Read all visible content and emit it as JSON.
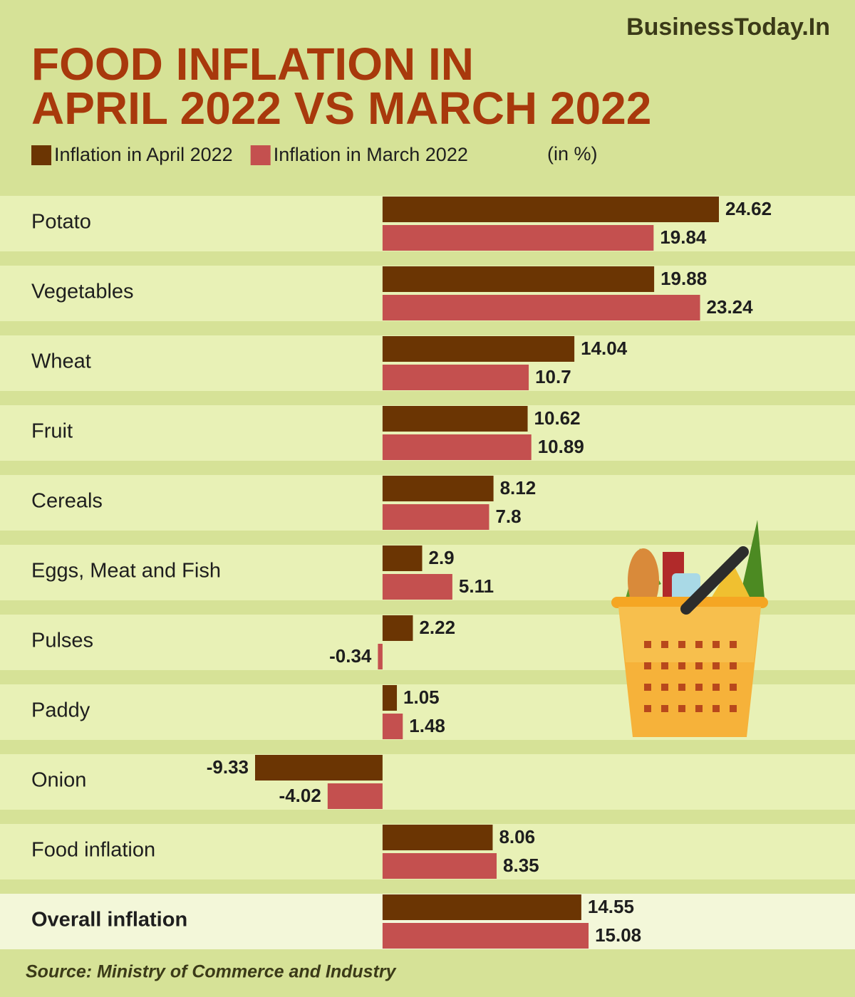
{
  "brand": "BusinessToday.In",
  "chart_data": {
    "type": "hbar",
    "title": [
      "FOOD INFLATION IN",
      "APRIL 2022 VS MARCH 2022"
    ],
    "unit_note": "(in %)",
    "source": "Source: Ministry of Commerce and Industry",
    "categories": [
      "Potato",
      "Vegetables",
      "Wheat",
      "Fruit",
      "Cereals",
      "Eggs, Meat and Fish",
      "Pulses",
      "Paddy",
      "Onion",
      "Food inflation",
      "Overall inflation"
    ],
    "series": [
      {
        "name": "Inflation in April 2022",
        "color": "#6b3503",
        "values": [
          24.62,
          19.88,
          14.04,
          10.62,
          8.12,
          2.9,
          2.22,
          1.05,
          -9.33,
          8.06,
          14.55
        ]
      },
      {
        "name": "Inflation in March 2022",
        "color": "#c4504f",
        "values": [
          19.84,
          23.24,
          10.7,
          10.89,
          7.8,
          5.11,
          -0.34,
          1.48,
          -4.02,
          8.35,
          15.08
        ]
      }
    ]
  }
}
